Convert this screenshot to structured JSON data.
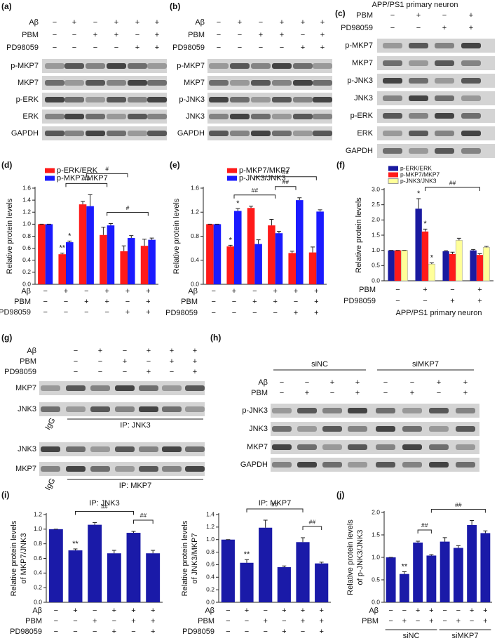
{
  "blots": [
    {
      "label": "(a)",
      "conditions": [
        {
          "label": "Aβ",
          "values": [
            "−",
            "+",
            "−",
            "+",
            "+",
            "+"
          ]
        },
        {
          "label": "PBM",
          "values": [
            "−",
            "−",
            "+",
            "+",
            "−",
            "+"
          ]
        },
        {
          "label": "PD98059",
          "values": [
            "−",
            "−",
            "−",
            "−",
            "+",
            "+"
          ]
        }
      ],
      "rows": [
        "p-MKP7",
        "MKP7",
        "p-ERK",
        "ERK",
        "GAPDH"
      ]
    },
    {
      "label": "(b)",
      "conditions": [
        {
          "label": "Aβ",
          "values": [
            "−",
            "+",
            "−",
            "+",
            "+",
            "+"
          ]
        },
        {
          "label": "PBM",
          "values": [
            "−",
            "−",
            "+",
            "+",
            "−",
            "+"
          ]
        },
        {
          "label": "PD98059",
          "values": [
            "−",
            "−",
            "−",
            "−",
            "+",
            "+"
          ]
        }
      ],
      "rows": [
        "p-MKP7",
        "MKP7",
        "p-JNK3",
        "JNK3",
        "GAPDH"
      ]
    },
    {
      "label": "(c)",
      "title": "APP/PS1 primary neuron",
      "conditions": [
        {
          "label": "PBM",
          "values": [
            "−",
            "+",
            "−",
            "+"
          ]
        },
        {
          "label": "PD98059",
          "values": [
            "−",
            "−",
            "+",
            "+"
          ]
        }
      ],
      "rows": [
        "p-MKP7",
        "MKP7",
        "p-JNK3",
        "JNK3",
        "p-ERK",
        "ERK",
        "GAPDH"
      ]
    },
    {
      "label": "(g)",
      "conditions": [
        {
          "label": "Aβ",
          "values": [
            "−",
            "+",
            "−",
            "+",
            "+",
            "+"
          ]
        },
        {
          "label": "PBM",
          "values": [
            "−",
            "−",
            "+",
            "−",
            "+",
            "+"
          ]
        },
        {
          "label": "PD98059",
          "values": [
            "−",
            "−",
            "−",
            "+",
            "−",
            "+"
          ]
        }
      ],
      "sections": [
        {
          "rows": [
            "MKP7",
            "JNK3"
          ],
          "control": "IgG",
          "ip": "IP: JNK3"
        },
        {
          "rows": [
            "JNK3",
            "MKP7"
          ],
          "control": "IgG",
          "ip": "IP: MKP7"
        }
      ]
    },
    {
      "label": "(h)",
      "groups": [
        "siNC",
        "siMKP7"
      ],
      "conditions": [
        {
          "label": "Aβ",
          "values": [
            "−",
            "−",
            "+",
            "+",
            "−",
            "−",
            "+",
            "+"
          ]
        },
        {
          "label": "PBM",
          "values": [
            "−",
            "+",
            "−",
            "+",
            "−",
            "+",
            "−",
            "+"
          ]
        }
      ],
      "rows": [
        "p-JNK3",
        "JNK3",
        "MKP7",
        "GAPDH"
      ]
    }
  ],
  "chart_data": [
    {
      "type": "bar",
      "label": "(d)",
      "ylabel": "Relative protein levels",
      "ylim": [
        0,
        1.6
      ],
      "yticks": [
        {
          "value": 0,
          "label": "0.0"
        },
        0.2,
        0.4,
        0.6,
        0.8,
        {
          "value": 1,
          "label": "1.0"
        },
        1.2,
        1.4,
        1.6
      ],
      "conditions": [
        {
          "label": "Aβ",
          "values": [
            "−",
            "+",
            "−",
            "+",
            "+",
            "+"
          ]
        },
        {
          "label": "PBM",
          "values": [
            "−",
            "−",
            "+",
            "+",
            "−",
            "+"
          ]
        },
        {
          "label": "PD98059",
          "values": [
            "−",
            "−",
            "−",
            "−",
            "+",
            "+"
          ]
        }
      ],
      "series": [
        {
          "name": "p-ERK/ERK",
          "color": "#ff1a1a",
          "values": [
            1.0,
            0.5,
            1.33,
            0.82,
            0.55,
            0.64
          ],
          "errors": [
            0,
            0.02,
            0.05,
            0.13,
            0.09,
            0.11
          ],
          "significance": [
            null,
            "**",
            null,
            null,
            null,
            null
          ]
        },
        {
          "name": "p-MKP7/MKP7",
          "color": "#1a1aff",
          "values": [
            1.0,
            0.7,
            1.3,
            0.98,
            0.77,
            0.74
          ],
          "errors": [
            0,
            0.02,
            0.19,
            0.03,
            0.04,
            0.03
          ],
          "significance": [
            null,
            "*",
            null,
            null,
            null,
            null
          ]
        }
      ],
      "brackets": [
        "##",
        "#",
        "#"
      ]
    },
    {
      "type": "bar",
      "label": "(e)",
      "ylabel": "Relative protein levels",
      "ylim": [
        0,
        1.6
      ],
      "yticks": [
        {
          "value": 0,
          "label": "0.0"
        },
        0.4,
        0.8,
        1.2,
        1.6
      ],
      "conditions": [
        {
          "label": "Aβ",
          "values": [
            "−",
            "+",
            "−",
            "+",
            "+",
            "+"
          ]
        },
        {
          "label": "PBM",
          "values": [
            "−",
            "−",
            "+",
            "+",
            "−",
            "+"
          ]
        },
        {
          "label": "PD98059",
          "values": [
            "−",
            "−",
            "−",
            "−",
            "+",
            "+"
          ]
        }
      ],
      "series": [
        {
          "name": "p-MKP7/MKP7",
          "color": "#ff1a1a",
          "values": [
            1.0,
            0.63,
            1.27,
            0.98,
            0.52,
            0.53
          ],
          "errors": [
            0,
            0.02,
            0.03,
            0.1,
            0.03,
            0.09
          ],
          "significance": [
            null,
            "*",
            null,
            null,
            null,
            null
          ]
        },
        {
          "name": "p-JNK3/JNK3",
          "color": "#1a1aff",
          "values": [
            1.0,
            1.22,
            0.67,
            0.85,
            1.4,
            1.21
          ],
          "errors": [
            0,
            0.04,
            0.07,
            0.03,
            0.04,
            0.03
          ],
          "significance": [
            null,
            "*",
            null,
            null,
            null,
            null
          ]
        }
      ],
      "brackets": [
        "##",
        "##",
        "##"
      ]
    },
    {
      "type": "bar",
      "label": "(f)",
      "ylabel": "Relative protein levels",
      "xlabel": "APP/PS1 primary neuron",
      "ylim": [
        0,
        3
      ],
      "yticks": [
        {
          "value": 0,
          "label": "0.0"
        },
        0.5,
        {
          "value": 1,
          "label": "1.0"
        },
        1.5,
        {
          "value": 2,
          "label": "2.0"
        },
        2.5,
        {
          "value": 3,
          "label": "3.0"
        }
      ],
      "conditions": [
        {
          "label": "PBM",
          "values": [
            "−",
            "+",
            "−",
            "+"
          ]
        },
        {
          "label": "PD98059",
          "values": [
            "−",
            "−",
            "+",
            "+"
          ]
        }
      ],
      "series": [
        {
          "name": "p-ERK/ERK",
          "color": "#1a1aa0",
          "values": [
            1.0,
            2.37,
            0.97,
            1.0
          ],
          "errors": [
            0,
            0.33,
            0.02,
            0.03
          ],
          "significance": [
            null,
            "*",
            null,
            null
          ]
        },
        {
          "name": "p-MKP7/MKP7",
          "color": "#ff1a1a",
          "values": [
            1.0,
            1.62,
            0.88,
            0.85
          ],
          "errors": [
            0,
            0.08,
            0.06,
            0.04
          ],
          "significance": [
            null,
            "*",
            null,
            null
          ]
        },
        {
          "name": "p-JNK3/JNK3",
          "color": "#ffff99",
          "values": [
            1.0,
            0.55,
            1.33,
            1.1
          ],
          "errors": [
            0,
            0.04,
            0.07,
            0.03
          ],
          "significance": [
            null,
            "*",
            null,
            null
          ]
        }
      ],
      "brackets": [
        "##"
      ]
    },
    {
      "type": "bar",
      "label": "(i)",
      "title": "IP: JNK3",
      "ylabel": [
        "Relative protein levels",
        "of MKP7/JNK3"
      ],
      "ylim": [
        0,
        1.2
      ],
      "yticks": [
        {
          "value": 0,
          "label": "0.0"
        },
        0.2,
        0.4,
        0.6,
        0.8,
        {
          "value": 1,
          "label": "1.0"
        },
        1.2
      ],
      "conditions": [
        {
          "label": "Aβ",
          "values": [
            "−",
            "+",
            "−",
            "+",
            "+",
            "+"
          ]
        },
        {
          "label": "PBM",
          "values": [
            "−",
            "−",
            "+",
            "−",
            "+",
            "+"
          ]
        },
        {
          "label": "PD98059",
          "values": [
            "−",
            "−",
            "−",
            "+",
            "−",
            "+"
          ]
        }
      ],
      "series": [
        {
          "color": "#1a1aa8",
          "values": [
            1.0,
            0.71,
            1.06,
            0.67,
            0.95,
            0.67
          ],
          "errors": [
            0,
            0.02,
            0.03,
            0.04,
            0.02,
            0.04
          ],
          "significance": [
            null,
            "**",
            null,
            null,
            null,
            null
          ]
        }
      ],
      "brackets": [
        "##",
        "##"
      ]
    },
    {
      "type": "bar",
      "title": "IP: MKP7",
      "ylabel": [
        "Relative protein levels",
        "of JNK3/MKP7"
      ],
      "ylim": [
        0,
        1.4
      ],
      "yticks": [
        {
          "value": 0,
          "label": "0.0"
        },
        0.2,
        0.4,
        0.6,
        0.8,
        {
          "value": 1,
          "label": "1.0"
        },
        1.2,
        1.4
      ],
      "conditions": [
        {
          "label": "Aβ",
          "values": [
            "−",
            "+",
            "−",
            "+",
            "+",
            "+"
          ]
        },
        {
          "label": "PBM",
          "values": [
            "−",
            "−",
            "+",
            "−",
            "+",
            "+"
          ]
        },
        {
          "label": "PD98059",
          "values": [
            "−",
            "−",
            "−",
            "+",
            "−",
            "+"
          ]
        }
      ],
      "series": [
        {
          "color": "#1a1aa8",
          "values": [
            1.0,
            0.63,
            1.19,
            0.56,
            0.96,
            0.62
          ],
          "errors": [
            0,
            0.05,
            0.12,
            0.02,
            0.07,
            0.02
          ],
          "significance": [
            null,
            "**",
            null,
            null,
            null,
            null
          ]
        }
      ],
      "brackets": [
        "##",
        "##"
      ]
    },
    {
      "type": "bar",
      "label": "(j)",
      "ylabel": [
        "Relative protein levels",
        "of p-JNK3/JNK3"
      ],
      "ylim": [
        0,
        2
      ],
      "yticks": [
        {
          "value": 0,
          "label": "0.0"
        },
        0.5,
        {
          "value": 1,
          "label": "1.0"
        },
        1.5,
        {
          "value": 2,
          "label": "2.0"
        }
      ],
      "conditions": [
        {
          "label": "Aβ",
          "values": [
            "−",
            "−",
            "+",
            "+",
            "−",
            "−",
            "+",
            "+"
          ]
        },
        {
          "label": "PBM",
          "values": [
            "−",
            "+",
            "−",
            "+",
            "−",
            "+",
            "−",
            "+"
          ]
        }
      ],
      "groups": [
        "siNC",
        "siMKP7"
      ],
      "series": [
        {
          "color": "#1a1aa8",
          "values": [
            1.0,
            0.63,
            1.33,
            1.04,
            1.35,
            1.21,
            1.72,
            1.54
          ],
          "errors": [
            0,
            0.05,
            0.03,
            0.02,
            0.09,
            0.05,
            0.1,
            0.05
          ],
          "significance": [
            null,
            "**",
            null,
            null,
            null,
            null,
            null,
            null
          ]
        }
      ],
      "brackets": [
        "##",
        "##"
      ]
    }
  ]
}
